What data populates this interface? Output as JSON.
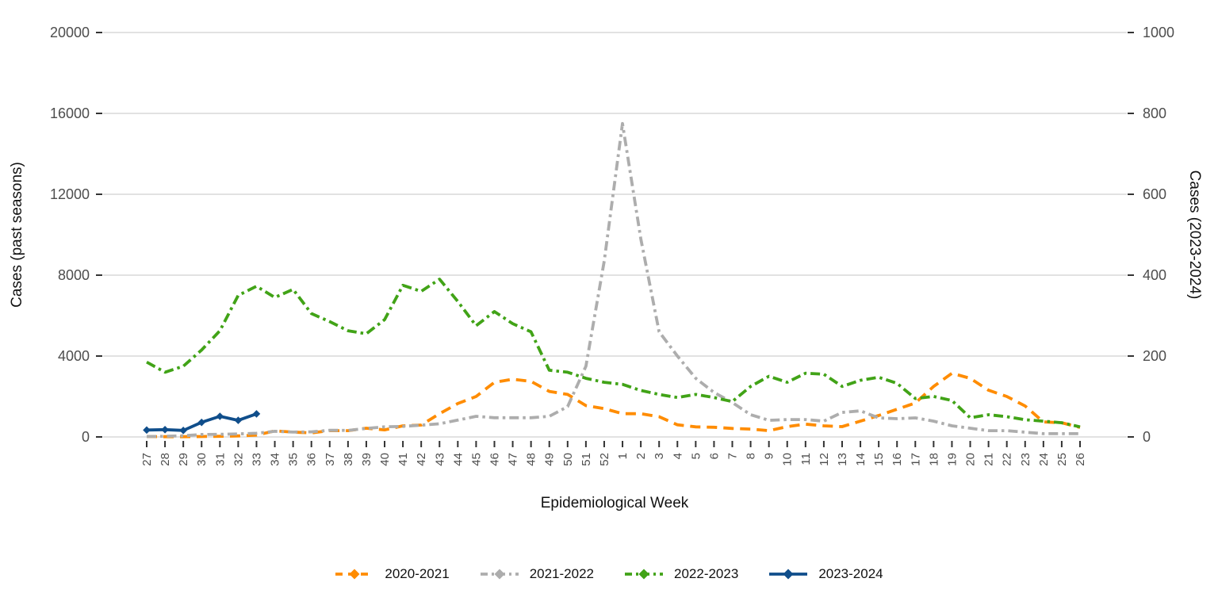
{
  "chart_data": {
    "type": "line",
    "title": "",
    "xlabel": "Epidemiological Week",
    "ylabel_left": "Cases (past seasons)",
    "ylabel_right": "Cases (2023-2024)",
    "grid": "horizontal-only",
    "legend_position": "bottom",
    "x_categories": [
      "27",
      "28",
      "29",
      "30",
      "31",
      "32",
      "33",
      "34",
      "35",
      "36",
      "37",
      "38",
      "39",
      "40",
      "41",
      "42",
      "43",
      "44",
      "45",
      "46",
      "47",
      "48",
      "49",
      "50",
      "51",
      "52",
      "1",
      "2",
      "3",
      "4",
      "5",
      "6",
      "7",
      "8",
      "9",
      "10",
      "11",
      "12",
      "13",
      "14",
      "15",
      "16",
      "17",
      "18",
      "19",
      "20",
      "21",
      "22",
      "23",
      "24",
      "25",
      "26"
    ],
    "y_left": {
      "min": 0,
      "max": 20000,
      "ticks": [
        0,
        4000,
        8000,
        12000,
        16000,
        20000
      ]
    },
    "y_right": {
      "min": 0,
      "max": 1000,
      "ticks": [
        0,
        200,
        400,
        600,
        800,
        1000
      ]
    },
    "series": [
      {
        "name": "2020-2021",
        "color": "#FF8C00",
        "style": "dashed",
        "axis": "left",
        "markers": false,
        "values": [
          20,
          10,
          10,
          20,
          30,
          50,
          90,
          300,
          240,
          200,
          310,
          310,
          430,
          350,
          550,
          590,
          1150,
          1650,
          2000,
          2700,
          2850,
          2750,
          2250,
          2100,
          1550,
          1400,
          1150,
          1150,
          1000,
          600,
          500,
          480,
          420,
          390,
          310,
          510,
          630,
          550,
          510,
          780,
          1060,
          1370,
          1680,
          2500,
          3150,
          2900,
          2310,
          2000,
          1530,
          740,
          700,
          470
        ]
      },
      {
        "name": "2021-2022",
        "color": "#ADADAD",
        "style": "dash-dot",
        "axis": "left",
        "markers": false,
        "values": [
          20,
          30,
          60,
          120,
          130,
          150,
          180,
          280,
          240,
          250,
          330,
          320,
          420,
          500,
          520,
          580,
          650,
          830,
          1020,
          950,
          950,
          950,
          1020,
          1500,
          3500,
          8700,
          15500,
          9800,
          5200,
          4000,
          2900,
          2200,
          1700,
          1100,
          820,
          860,
          860,
          780,
          1210,
          1290,
          940,
          900,
          940,
          780,
          550,
          430,
          310,
          310,
          235,
          160,
          160,
          160
        ]
      },
      {
        "name": "2022-2023",
        "color": "#41A317",
        "style": "dash-dot",
        "axis": "left",
        "markers": false,
        "values": [
          3700,
          3200,
          3500,
          4300,
          5250,
          7000,
          7450,
          6900,
          7300,
          6100,
          5700,
          5250,
          5100,
          5800,
          7500,
          7200,
          7800,
          6700,
          5500,
          6200,
          5600,
          5200,
          3300,
          3200,
          2900,
          2700,
          2600,
          2300,
          2100,
          1950,
          2100,
          1950,
          1750,
          2500,
          3000,
          2700,
          3150,
          3100,
          2500,
          2800,
          2950,
          2650,
          1900,
          2000,
          1800,
          950,
          1100,
          1000,
          850,
          780,
          700,
          500
        ]
      },
      {
        "name": "2023-2024",
        "color": "#104E8B",
        "style": "solid",
        "axis": "right",
        "markers": true,
        "values": [
          17,
          18,
          16,
          36,
          51,
          41,
          57,
          null,
          null,
          null,
          null,
          null,
          null,
          null,
          null,
          null,
          null,
          null,
          null,
          null,
          null,
          null,
          null,
          null,
          null,
          null,
          null,
          null,
          null,
          null,
          null,
          null,
          null,
          null,
          null,
          null,
          null,
          null,
          null,
          null,
          null,
          null,
          null,
          null,
          null,
          null,
          null,
          null,
          null,
          null,
          null,
          null
        ]
      }
    ]
  }
}
